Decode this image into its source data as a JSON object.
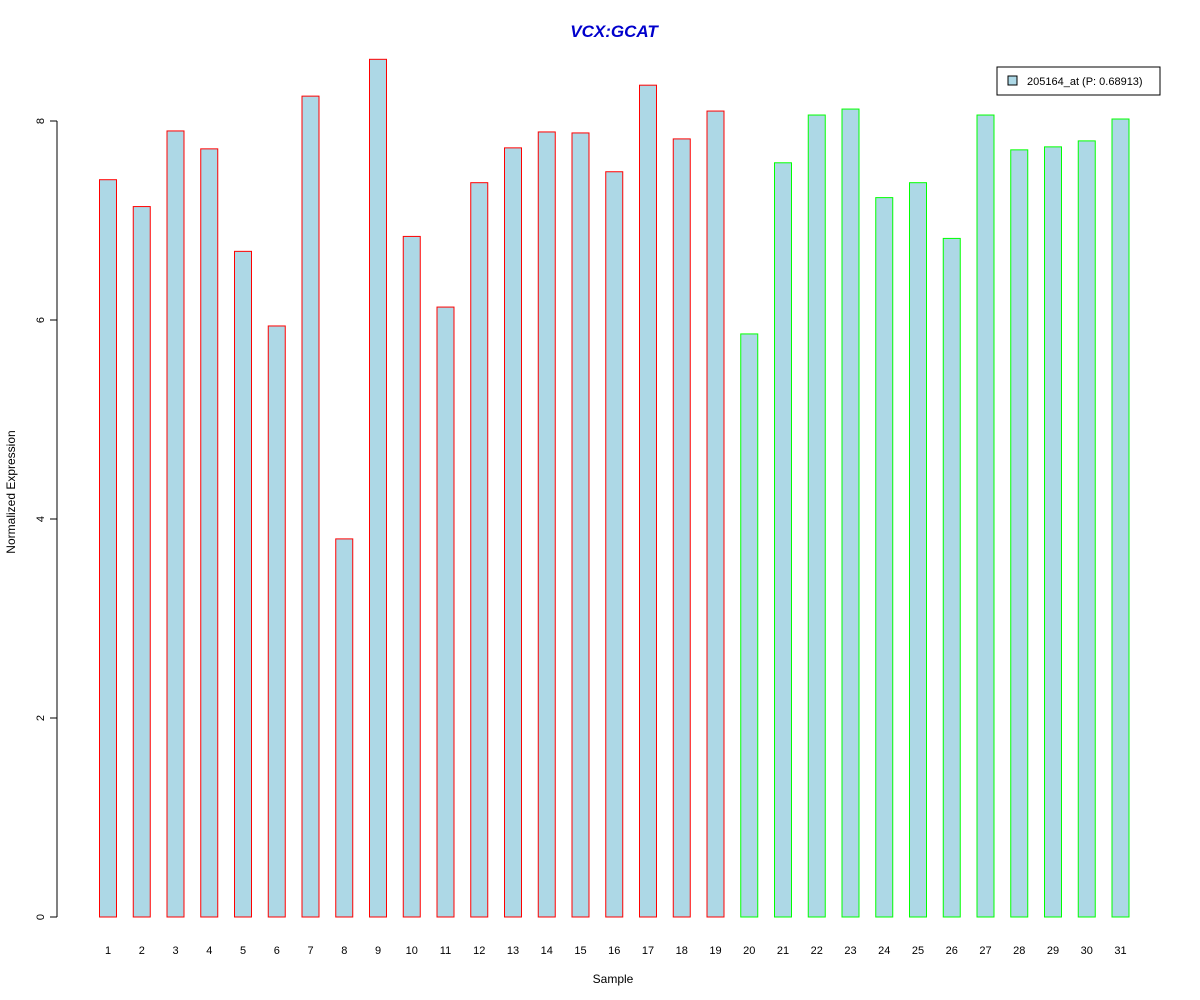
{
  "chart_data": {
    "type": "bar",
    "title": "VCX:GCAT",
    "xlabel": "Sample",
    "ylabel": "Normalized Expression",
    "ylim": [
      0,
      8.6
    ],
    "yticks": [
      0,
      2,
      4,
      6,
      8
    ],
    "grid": false,
    "legend": {
      "position": "top-right",
      "entries": [
        {
          "label": "205164_at (P: 0.68913)",
          "color": "#add8e6"
        }
      ]
    },
    "bar_fill": "#add8e6",
    "categories": [
      "1",
      "2",
      "3",
      "4",
      "5",
      "6",
      "7",
      "8",
      "9",
      "10",
      "11",
      "12",
      "13",
      "14",
      "15",
      "16",
      "17",
      "18",
      "19",
      "20",
      "21",
      "22",
      "23",
      "24",
      "25",
      "26",
      "27",
      "28",
      "29",
      "30",
      "31"
    ],
    "values": [
      7.41,
      7.14,
      7.9,
      7.72,
      6.69,
      5.94,
      8.25,
      3.8,
      8.62,
      6.84,
      6.13,
      7.38,
      7.73,
      7.89,
      7.88,
      7.49,
      8.36,
      7.82,
      8.1,
      5.86,
      7.58,
      8.06,
      8.12,
      7.23,
      7.38,
      6.82,
      8.06,
      7.71,
      7.74,
      7.8,
      8.02
    ],
    "groups": [
      {
        "samples": [
          1,
          19
        ],
        "border_color": "#ff0000"
      },
      {
        "samples": [
          20,
          31
        ],
        "border_color": "#00ff00"
      }
    ]
  }
}
